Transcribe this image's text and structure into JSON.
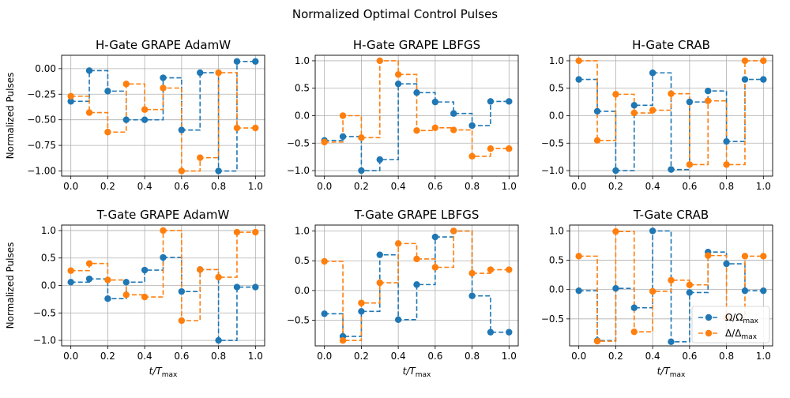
{
  "figure": {
    "suptitle": "Normalized Optimal Control Pulses",
    "colors": {
      "omega": "#1f77b4",
      "delta": "#ff7f0e",
      "grid": "#b0b0b0"
    }
  },
  "chart_data": [
    {
      "type": "line",
      "title": "H-Gate GRAPE AdamW",
      "xlabel": "",
      "ylabel": "Normalized Pulses",
      "xlim": [
        -0.05,
        1.05
      ],
      "ylim": [
        -1.05,
        0.13
      ],
      "xticks": [
        0.0,
        0.2,
        0.4,
        0.6,
        0.8,
        1.0
      ],
      "xtick_labels": [
        "0.0",
        "0.2",
        "0.4",
        "0.6",
        "0.8",
        "1.0"
      ],
      "yticks": [
        0.0,
        -0.25,
        -0.5,
        -0.75,
        -1.0
      ],
      "ytick_labels": [
        "0.00",
        "−0.25",
        "−0.50",
        "−0.75",
        "−1.00"
      ],
      "grid": true,
      "x": [
        0.0,
        0.1,
        0.2,
        0.3,
        0.4,
        0.5,
        0.6,
        0.7,
        0.8,
        0.9,
        1.0
      ],
      "series": [
        {
          "values": [
            -0.32,
            -0.02,
            -0.22,
            -0.5,
            -0.5,
            -0.09,
            -0.6,
            -0.04,
            -1.0,
            0.07,
            0.07
          ]
        },
        {
          "values": [
            -0.27,
            -0.43,
            -0.62,
            -0.15,
            -0.4,
            -0.19,
            -1.0,
            -0.87,
            -0.04,
            -0.58,
            -0.58
          ]
        }
      ]
    },
    {
      "type": "line",
      "title": "H-Gate GRAPE LBFGS",
      "xlabel": "",
      "ylabel": "",
      "xlim": [
        -0.05,
        1.05
      ],
      "ylim": [
        -1.1,
        1.1
      ],
      "xticks": [
        0.0,
        0.2,
        0.4,
        0.6,
        0.8,
        1.0
      ],
      "xtick_labels": [
        "0.0",
        "0.2",
        "0.4",
        "0.6",
        "0.8",
        "1.0"
      ],
      "yticks": [
        1.0,
        0.5,
        0.0,
        -0.5,
        -1.0
      ],
      "ytick_labels": [
        "1.0",
        "0.5",
        "0.0",
        "−0.5",
        "−1.0"
      ],
      "grid": true,
      "x": [
        0.0,
        0.1,
        0.2,
        0.3,
        0.4,
        0.5,
        0.6,
        0.7,
        0.8,
        0.9,
        1.0
      ],
      "series": [
        {
          "values": [
            -0.45,
            -0.38,
            -1.0,
            -0.8,
            0.58,
            0.42,
            0.25,
            0.04,
            -0.18,
            0.26,
            0.26
          ]
        },
        {
          "values": [
            -0.48,
            0.0,
            -0.4,
            1.0,
            0.75,
            -0.27,
            -0.22,
            -0.26,
            -0.74,
            -0.6,
            -0.6
          ]
        }
      ]
    },
    {
      "type": "line",
      "title": "H-Gate CRAB",
      "xlabel": "",
      "ylabel": "",
      "xlim": [
        -0.05,
        1.05
      ],
      "ylim": [
        -1.1,
        1.1
      ],
      "xticks": [
        0.0,
        0.2,
        0.4,
        0.6,
        0.8,
        1.0
      ],
      "xtick_labels": [
        "0.0",
        "0.2",
        "0.4",
        "0.6",
        "0.8",
        "1.0"
      ],
      "yticks": [
        1.0,
        0.5,
        0.0,
        -0.5,
        -1.0
      ],
      "ytick_labels": [
        "1.0",
        "0.5",
        "0.0",
        "−0.5",
        "−1.0"
      ],
      "grid": true,
      "x": [
        0.0,
        0.1,
        0.2,
        0.3,
        0.4,
        0.5,
        0.6,
        0.7,
        0.8,
        0.9,
        1.0
      ],
      "series": [
        {
          "values": [
            0.66,
            0.08,
            -1.0,
            0.19,
            0.78,
            -0.98,
            0.25,
            0.45,
            -0.47,
            0.66,
            0.66
          ]
        },
        {
          "values": [
            1.0,
            -0.45,
            0.39,
            0.05,
            0.1,
            0.4,
            -0.89,
            0.27,
            -0.89,
            1.0,
            1.0
          ]
        }
      ]
    },
    {
      "type": "line",
      "title": "T-Gate GRAPE AdamW",
      "xlabel": "t/T_max",
      "ylabel": "Normalized Pulses",
      "xlim": [
        -0.05,
        1.05
      ],
      "ylim": [
        -1.1,
        1.1
      ],
      "xticks": [
        0.0,
        0.2,
        0.4,
        0.6,
        0.8,
        1.0
      ],
      "xtick_labels": [
        "0.0",
        "0.2",
        "0.4",
        "0.6",
        "0.8",
        "1.0"
      ],
      "yticks": [
        1.0,
        0.5,
        0.0,
        -0.5,
        -1.0
      ],
      "ytick_labels": [
        "1.0",
        "0.5",
        "0.0",
        "−0.5",
        "−1.0"
      ],
      "grid": true,
      "x": [
        0.0,
        0.1,
        0.2,
        0.3,
        0.4,
        0.5,
        0.6,
        0.7,
        0.8,
        0.9,
        1.0
      ],
      "series": [
        {
          "values": [
            0.06,
            0.12,
            -0.24,
            0.06,
            0.28,
            0.51,
            -0.11,
            0.29,
            -1.0,
            -0.03,
            -0.03
          ]
        },
        {
          "values": [
            0.27,
            0.4,
            0.1,
            -0.17,
            -0.21,
            1.0,
            -0.64,
            0.29,
            0.15,
            0.97,
            0.97
          ]
        }
      ]
    },
    {
      "type": "line",
      "title": "T-Gate GRAPE LBFGS",
      "xlabel": "t/T_max",
      "ylabel": "",
      "xlim": [
        -0.05,
        1.05
      ],
      "ylim": [
        -0.93,
        1.1
      ],
      "xticks": [
        0.0,
        0.2,
        0.4,
        0.6,
        0.8,
        1.0
      ],
      "xtick_labels": [
        "0.0",
        "0.2",
        "0.4",
        "0.6",
        "0.8",
        "1.0"
      ],
      "yticks": [
        1.0,
        0.5,
        0.0,
        -0.5
      ],
      "ytick_labels": [
        "1.0",
        "0.5",
        "0.0",
        "−0.5"
      ],
      "grid": true,
      "x": [
        0.0,
        0.1,
        0.2,
        0.3,
        0.4,
        0.5,
        0.6,
        0.7,
        0.8,
        0.9,
        1.0
      ],
      "series": [
        {
          "values": [
            -0.39,
            -0.77,
            -0.35,
            0.6,
            -0.49,
            0.1,
            0.9,
            1.0,
            -0.09,
            -0.7,
            -0.7
          ]
        },
        {
          "values": [
            0.49,
            -0.84,
            -0.21,
            0.13,
            0.79,
            0.53,
            0.39,
            1.0,
            0.29,
            0.35,
            0.35
          ]
        }
      ]
    },
    {
      "type": "line",
      "title": "T-Gate CRAB",
      "xlabel": "t/T_max",
      "ylabel": "",
      "xlim": [
        -0.05,
        1.05
      ],
      "ylim": [
        -0.96,
        1.1
      ],
      "xticks": [
        0.0,
        0.2,
        0.4,
        0.6,
        0.8,
        1.0
      ],
      "xtick_labels": [
        "0.0",
        "0.2",
        "0.4",
        "0.6",
        "0.8",
        "1.0"
      ],
      "yticks": [
        1.0,
        0.5,
        0.0,
        -0.5
      ],
      "ytick_labels": [
        "1.0",
        "0.5",
        "0.0",
        "−0.5"
      ],
      "grid": true,
      "legend": {
        "placement": "lower-right"
      },
      "x": [
        0.0,
        0.1,
        0.2,
        0.3,
        0.4,
        0.5,
        0.6,
        0.7,
        0.8,
        0.9,
        1.0
      ],
      "series": [
        {
          "name": "Ω/Ω_max",
          "values": [
            -0.02,
            -0.87,
            0.02,
            -0.31,
            1.0,
            -0.89,
            -0.05,
            0.64,
            0.44,
            -0.02,
            -0.02
          ]
        },
        {
          "name": "Δ/Δ_max",
          "values": [
            0.57,
            -0.88,
            0.99,
            -0.72,
            -0.03,
            0.16,
            0.08,
            0.58,
            -0.48,
            0.57,
            0.57
          ]
        }
      ]
    }
  ]
}
